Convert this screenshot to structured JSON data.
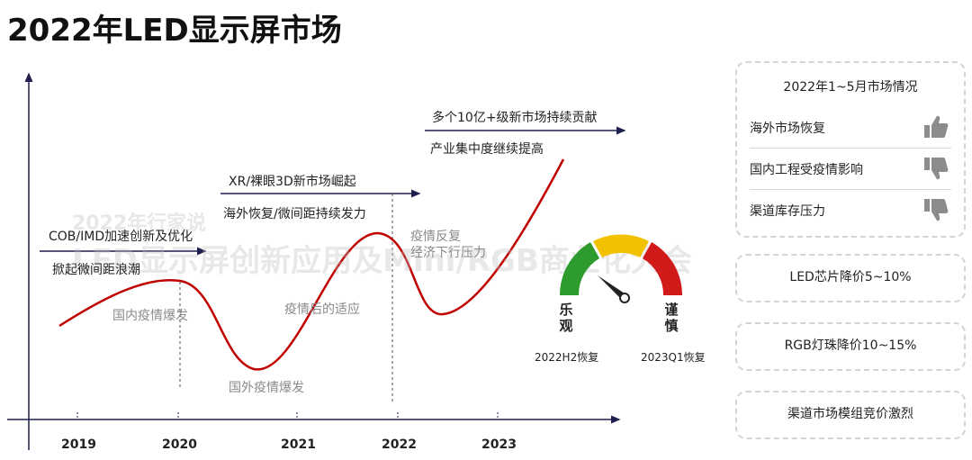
{
  "title": "2022年LED显示屏市场",
  "watermark": {
    "line1": "2022年行家说",
    "line2": "LED显示屏创新应用及Mini/RGB商业化大会"
  },
  "timeline": {
    "years": [
      "2019",
      "2020",
      "2021",
      "2022",
      "2023"
    ],
    "phases": [
      {
        "heading": "COB/IMD加速创新及优化",
        "sub": "掀起微间距浪潮"
      },
      {
        "heading": "XR/裸眼3D新市场崛起",
        "sub": "海外恢复/微间距持续发力"
      },
      {
        "heading": "多个10亿+级新市场持续贡献",
        "sub": "产业集中度继续提高"
      }
    ],
    "events": {
      "domestic_outbreak": "国内疫情爆发",
      "foreign_outbreak": "国外疫情爆发",
      "post_epidemic": "疫情后的适应",
      "recurrence_line1": "疫情反复",
      "recurrence_line2": "经济下行压力"
    },
    "colors": {
      "curve": "#c00000",
      "axis": "#1f1f4f",
      "dash": "#555555"
    }
  },
  "gauge": {
    "left_label": "乐观",
    "right_label": "谨慎",
    "left_note": "2022H2恢复",
    "right_note": "2023Q1恢复",
    "colors": {
      "green": "#2e9b2e",
      "yellow": "#f2c200",
      "red": "#d11a1a",
      "needle": "#222222"
    }
  },
  "panel": {
    "title": "2022年1~5月市场情况",
    "rows": [
      {
        "text": "海外市场恢复",
        "icon": "thumbs-up-icon"
      },
      {
        "text": "国内工程受疫情影响",
        "icon": "thumbs-down-icon"
      },
      {
        "text": "渠道库存压力",
        "icon": "thumbs-down-icon"
      }
    ]
  },
  "boxes": [
    {
      "text": "LED芯片降价5~10%"
    },
    {
      "text": "RGB灯珠降价10~15%"
    },
    {
      "text": "渠道市场模组竞价激烈"
    }
  ]
}
